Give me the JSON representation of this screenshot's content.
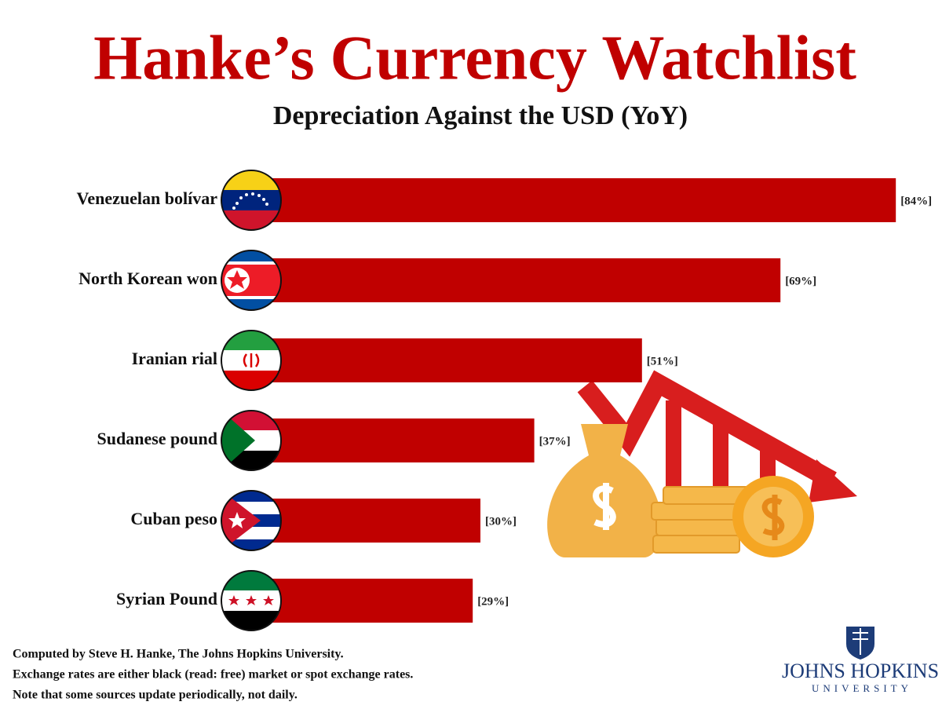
{
  "chart_data": {
    "type": "bar",
    "orientation": "horizontal",
    "title": "Hanke’s Currency Watchlist",
    "subtitle": "Depreciation Against the USD (YoY)",
    "categories": [
      "Venezuelan bolívar",
      "North Korean won",
      "Iranian rial",
      "Sudanese pound",
      "Cuban peso",
      "Syrian Pound"
    ],
    "values": [
      84,
      69,
      51,
      37,
      30,
      29
    ],
    "value_labels": [
      "[84%]",
      "[69%]",
      "[51%]",
      "[37%]",
      "[30%]",
      "[29%]"
    ],
    "color": "#c00000",
    "notes": [
      "Computed by Steve H. Hanke, The Johns Hopkins University.",
      "Exchange rates are either black (read: free) market or spot exchange rates.",
      "Note that some sources update periodically, not daily."
    ]
  },
  "logo": {
    "name": "JOHNS HOPKINS",
    "subname": "UNIVERSITY"
  }
}
